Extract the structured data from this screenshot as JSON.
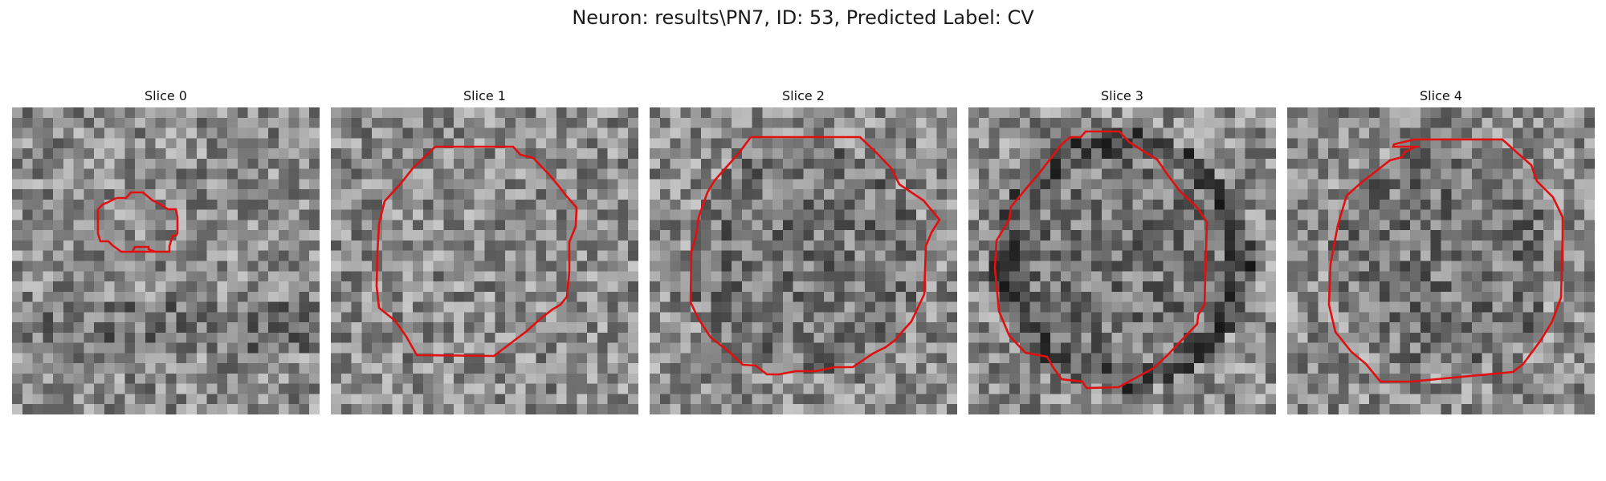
{
  "figure": {
    "title": "Neuron: results\\PN7, ID: 53, Predicted Label: CV",
    "contour_color": "#e01010"
  },
  "slices": [
    {
      "title": "Slice 0"
    },
    {
      "title": "Slice 1"
    },
    {
      "title": "Slice 2"
    },
    {
      "title": "Slice 3"
    },
    {
      "title": "Slice 4"
    }
  ]
}
